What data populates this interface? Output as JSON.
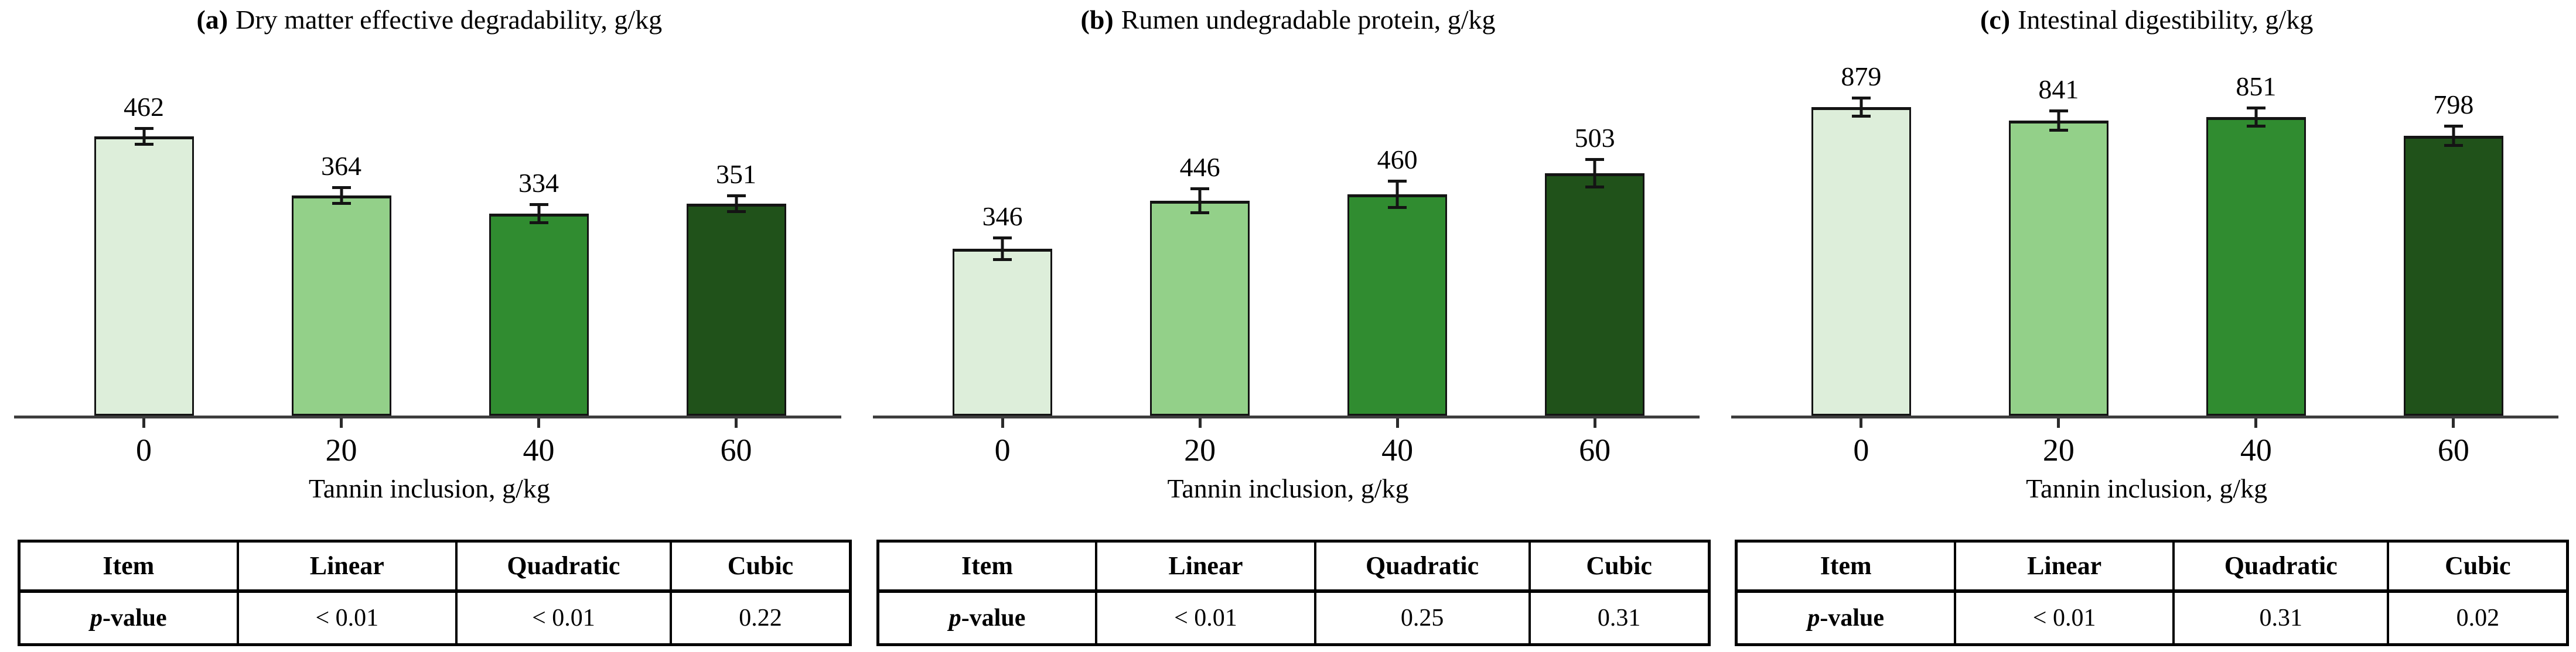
{
  "figure": {
    "background_color": "#ffffff",
    "axis_color": "#3d3d3d",
    "ink_color": "#141414",
    "bar_colors": [
      "#ddeeda",
      "#93d089",
      "#308c30",
      "#20521a"
    ]
  },
  "chart_data": [
    {
      "type": "bar",
      "panel_label": "(a)",
      "title": "Dry matter effective degradability, g/kg",
      "xlabel": "Tannin inclusion, g/kg",
      "categories": [
        "0",
        "20",
        "40",
        "60"
      ],
      "values": [
        462,
        364,
        334,
        351
      ],
      "errors": [
        13,
        13,
        15,
        13
      ],
      "ylim": [
        0,
        630
      ],
      "grid": false,
      "legend": "none",
      "table": {
        "headers": [
          "Item",
          "Linear",
          "Quadratic",
          "Cubic"
        ],
        "row_label_italic": "p",
        "row_label_rest": "-value",
        "values": [
          "< 0.01",
          "< 0.01",
          "0.22"
        ]
      }
    },
    {
      "type": "bar",
      "panel_label": "(b)",
      "title": "Rumen undegradable protein, g/kg",
      "xlabel": "Tannin inclusion, g/kg",
      "categories": [
        "0",
        "20",
        "40",
        "60"
      ],
      "values": [
        346,
        446,
        460,
        503
      ],
      "errors": [
        22,
        24,
        27,
        28
      ],
      "ylim": [
        0,
        790
      ],
      "grid": false,
      "legend": "none",
      "table": {
        "headers": [
          "Item",
          "Linear",
          "Quadratic",
          "Cubic"
        ],
        "row_label_italic": "p",
        "row_label_rest": "-value",
        "values": [
          "< 0.01",
          "0.25",
          "0.31"
        ]
      }
    },
    {
      "type": "bar",
      "panel_label": "(c)",
      "title": "Intestinal digestibility, g/kg",
      "xlabel": "Tannin inclusion, g/kg",
      "categories": [
        "0",
        "20",
        "40",
        "60"
      ],
      "values": [
        879,
        841,
        851,
        798
      ],
      "errors": [
        25,
        27,
        25,
        27
      ],
      "ylim": [
        0,
        1085
      ],
      "grid": false,
      "legend": "none",
      "table": {
        "headers": [
          "Item",
          "Linear",
          "Quadratic",
          "Cubic"
        ],
        "row_label_italic": "p",
        "row_label_rest": "-value",
        "values": [
          "< 0.01",
          "0.31",
          "0.02"
        ]
      }
    }
  ]
}
